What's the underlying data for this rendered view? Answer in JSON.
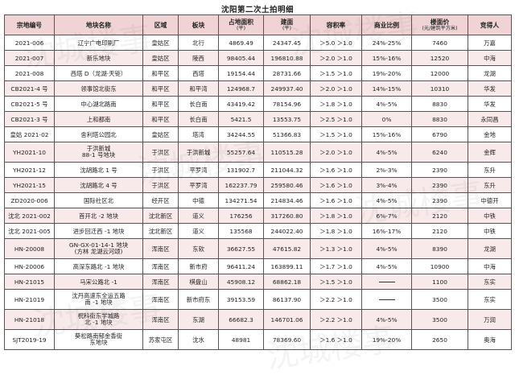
{
  "title": "沈阳第二次土拍明细",
  "watermark": "沈城楼事",
  "headers": {
    "code": "宗地编号",
    "name": "地块名称",
    "district": "区域",
    "block": "板块",
    "area_label": "占地面积",
    "area_unit": "(平)",
    "build_label": "建面",
    "build_unit": "(平)",
    "far": "容积率",
    "biz": "商业比例",
    "price_label": "楼面价",
    "price_unit": "(元/建筑平方米)",
    "winner": "竞得人"
  },
  "rows": [
    {
      "code": "2021-006",
      "name": [
        "辽宁广电印刷厂"
      ],
      "district": "皇姑区",
      "block": "北行",
      "area": "4869.49",
      "build": "24347.45",
      "far": "＞5.0 ＞1.0",
      "biz": "24%-25%",
      "price": "7460",
      "winner": "万嘉"
    },
    {
      "code": "2021-007",
      "name": [
        "新乐地块"
      ],
      "district": "皇姑区",
      "block": "陵西",
      "area": "98405.44",
      "build": "196810.88",
      "far": "＞2.0 ＞1.0",
      "biz": "15%-16%",
      "price": "12520",
      "winner": "中海"
    },
    {
      "code": "2021-008",
      "name": [
        "西塔 D（龙湖·天钜）"
      ],
      "district": "和平区",
      "block": "西塔",
      "area": "19154.44",
      "build": "28731.66",
      "far": "＞1.5 ＞1.0",
      "biz": "19%-20%",
      "price": "12000",
      "winner": "龙湖"
    },
    {
      "code": "CB2021-4 号",
      "name": [
        "领事馆北街东"
      ],
      "district": "和平区",
      "block": "和平湾",
      "area": "124968.7",
      "build": "249937.40",
      "far": "＞2.0 ＞1.0",
      "biz": "14%-15%",
      "price": "10310",
      "winner": "华发"
    },
    {
      "code": "CB2021-5 号",
      "name": [
        "中心湖北路南"
      ],
      "district": "和平区",
      "block": "长白南",
      "area": "43419.42",
      "build": "78154.96",
      "far": "＞1.8 ＞1.0",
      "biz": "4%-5%",
      "price": "8830",
      "winner": "华发"
    },
    {
      "code": "CB2021-3 号",
      "name": [
        "上和都南"
      ],
      "district": "和平区",
      "block": "长白南",
      "area": "5421.5",
      "build": "13553.75",
      "far": "＞2.5 ＞1.0",
      "biz": "0%",
      "price": "8830",
      "winner": "永同昌"
    },
    {
      "code": "皇姑 2021-02",
      "name": [
        "舍利塔公园北"
      ],
      "district": "皇姑区",
      "block": "塔湾",
      "area": "34244.55",
      "build": "51366.83",
      "far": "＞1.5 ＞1.0",
      "biz": "15%-16%",
      "price": "6790",
      "winner": "金地"
    },
    {
      "code": "YH2021-10",
      "name": [
        "于洪新城",
        "88-1 号地块"
      ],
      "district": "于洪区",
      "block": "于洪新城",
      "area": "55257.64",
      "build": "110515.28",
      "far": "＞2.0 ＞1.0",
      "biz": "4%-5%",
      "price": "6240",
      "winner": "金辉"
    },
    {
      "code": "YH2021-12",
      "name": [
        "沈胡路北 1 号"
      ],
      "district": "于洪区",
      "block": "平罗湾",
      "area": "131902.7",
      "build": "211044.32",
      "far": "＞1.6 ＞1.0",
      "biz": "2%-3%",
      "price": "2390",
      "winner": "东升"
    },
    {
      "code": "YH2021-15",
      "name": [
        "沈胡路北 4 号"
      ],
      "district": "于洪区",
      "block": "平罗湾",
      "area": "162237.79",
      "build": "259580.46",
      "far": "＞1.6 ＞1.0",
      "biz": "3%-4%",
      "price": "2390",
      "winner": "东升"
    },
    {
      "code": "ZD2020-006",
      "name": [
        "国际社区北"
      ],
      "district": "经开区",
      "block": "中德",
      "area": "134271.54",
      "build": "214834.46",
      "far": "＞1.6 ＞1.0",
      "biz": "4%-5%",
      "price": "2390",
      "winner": "中德开"
    },
    {
      "code": "沈北 2021-002",
      "name": [
        "首开北 -2 地块"
      ],
      "district": "沈北新区",
      "block": "道义",
      "area": "176256",
      "build": "317260.80",
      "far": "＞1.8 ＞1.0",
      "biz": "6%-7%",
      "price": "2120",
      "winner": "中铁"
    },
    {
      "code": "沈北 2021-005",
      "name": [
        "进步回迁西 -1 地块"
      ],
      "district": "沈北新区",
      "block": "道义",
      "area": "135568",
      "build": "244022.40",
      "far": "＞1.8 ＞1.0",
      "biz": "16%-17%",
      "price": "2120",
      "winner": "中铁"
    },
    {
      "code": "HN-20008",
      "name": [
        "GN-GX-01-14-1 地块",
        "(方林 龙湖云河颂)"
      ],
      "district": "浑南区",
      "block": "东软",
      "area": "36627.55",
      "build": "47615.82",
      "far": "＞1.3 ＞1.0",
      "biz": "4%-5%",
      "price": "8390",
      "winner": "龙湖"
    },
    {
      "code": "HN-20006",
      "name": [
        "高深东路北 -1 地块"
      ],
      "district": "浑南区",
      "block": "新市府",
      "area": "96411.24",
      "build": "163899.11",
      "far": "＞1.7 ＞1.0",
      "biz": "4%-5%",
      "price": "10900",
      "winner": "中海"
    },
    {
      "code": "HN-21015",
      "name": [
        "马宋公路北 -1"
      ],
      "district": "浑南区",
      "block": "棋盘山",
      "area": "45908.12",
      "build": "68862.18",
      "far": "＞1.5 ＞1.0",
      "biz": "",
      "price": "1100",
      "winner": "东实"
    },
    {
      "code": "HN-21019",
      "name": [
        "沈丹高速东全运五路",
        "南 -1 地块"
      ],
      "district": "浑南区",
      "block": "新市府东",
      "area": "39153.59",
      "build": "86137.90",
      "far": "＞2.2 ＞1.0",
      "biz": "",
      "price": "3500",
      "winner": "东实"
    },
    {
      "code": "HN-21018",
      "name": [
        "祝科街东学城路",
        "北 -1 地块"
      ],
      "district": "浑南区",
      "block": "东湖",
      "area": "66682.3",
      "build": "146701.06",
      "far": "＞2.2 ＞1.0",
      "biz": "4%-5%",
      "price": "3500",
      "winner": "万润"
    },
    {
      "code": "SJT2019-19",
      "name": [
        "葵松路南郁金香街",
        "东地块"
      ],
      "district": "苏家屯区",
      "block": "沈水",
      "area": "48981",
      "build": "78369.60",
      "far": "＞1.6 ＞1.0",
      "biz": "19%-20%",
      "price": "2650",
      "winner": "奥海"
    }
  ]
}
